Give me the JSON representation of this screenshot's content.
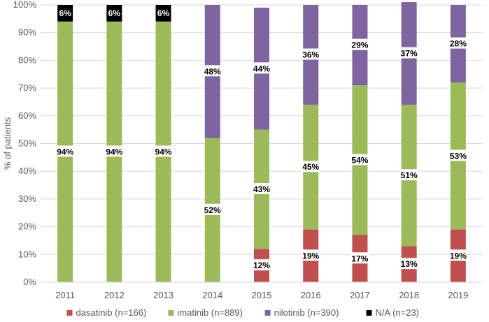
{
  "chart_data": {
    "type": "bar",
    "stacked": true,
    "title": "",
    "xlabel": "",
    "ylabel": "% of patients",
    "ylim": [
      0,
      100
    ],
    "yticks": [
      "0%",
      "10%",
      "20%",
      "30%",
      "40%",
      "50%",
      "60%",
      "70%",
      "80%",
      "90%",
      "100%"
    ],
    "categories": [
      "2011",
      "2012",
      "2013",
      "2014",
      "2015",
      "2016",
      "2017",
      "2018",
      "2019"
    ],
    "grid": true,
    "legend_position": "bottom",
    "series": [
      {
        "name": "dasatinib (n=166)",
        "color": "#c0504d",
        "values": [
          0,
          0,
          0,
          0,
          12,
          19,
          17,
          13,
          19
        ],
        "labels": [
          "",
          "",
          "",
          "",
          "12%",
          "19%",
          "17%",
          "13%",
          "19%"
        ]
      },
      {
        "name": "imatinib (n=889)",
        "color": "#9bbb59",
        "values": [
          94,
          94,
          94,
          52,
          43,
          45,
          54,
          51,
          53
        ],
        "labels": [
          "94%",
          "94%",
          "94%",
          "52%",
          "43%",
          "45%",
          "54%",
          "51%",
          "53%"
        ]
      },
      {
        "name": "nilotinib (n=390)",
        "color": "#8064a2",
        "values": [
          0,
          0,
          0,
          48,
          44,
          36,
          29,
          37,
          28
        ],
        "labels": [
          "",
          "",
          "",
          "48%",
          "44%",
          "36%",
          "29%",
          "37%",
          "28%"
        ]
      },
      {
        "name": "N/A (n=23)",
        "color": "#000000",
        "values": [
          6,
          6,
          6,
          0,
          0,
          0,
          0,
          0,
          0
        ],
        "labels": [
          "6%",
          "6%",
          "6%",
          "",
          "",
          "",
          "",
          "",
          ""
        ]
      }
    ]
  }
}
